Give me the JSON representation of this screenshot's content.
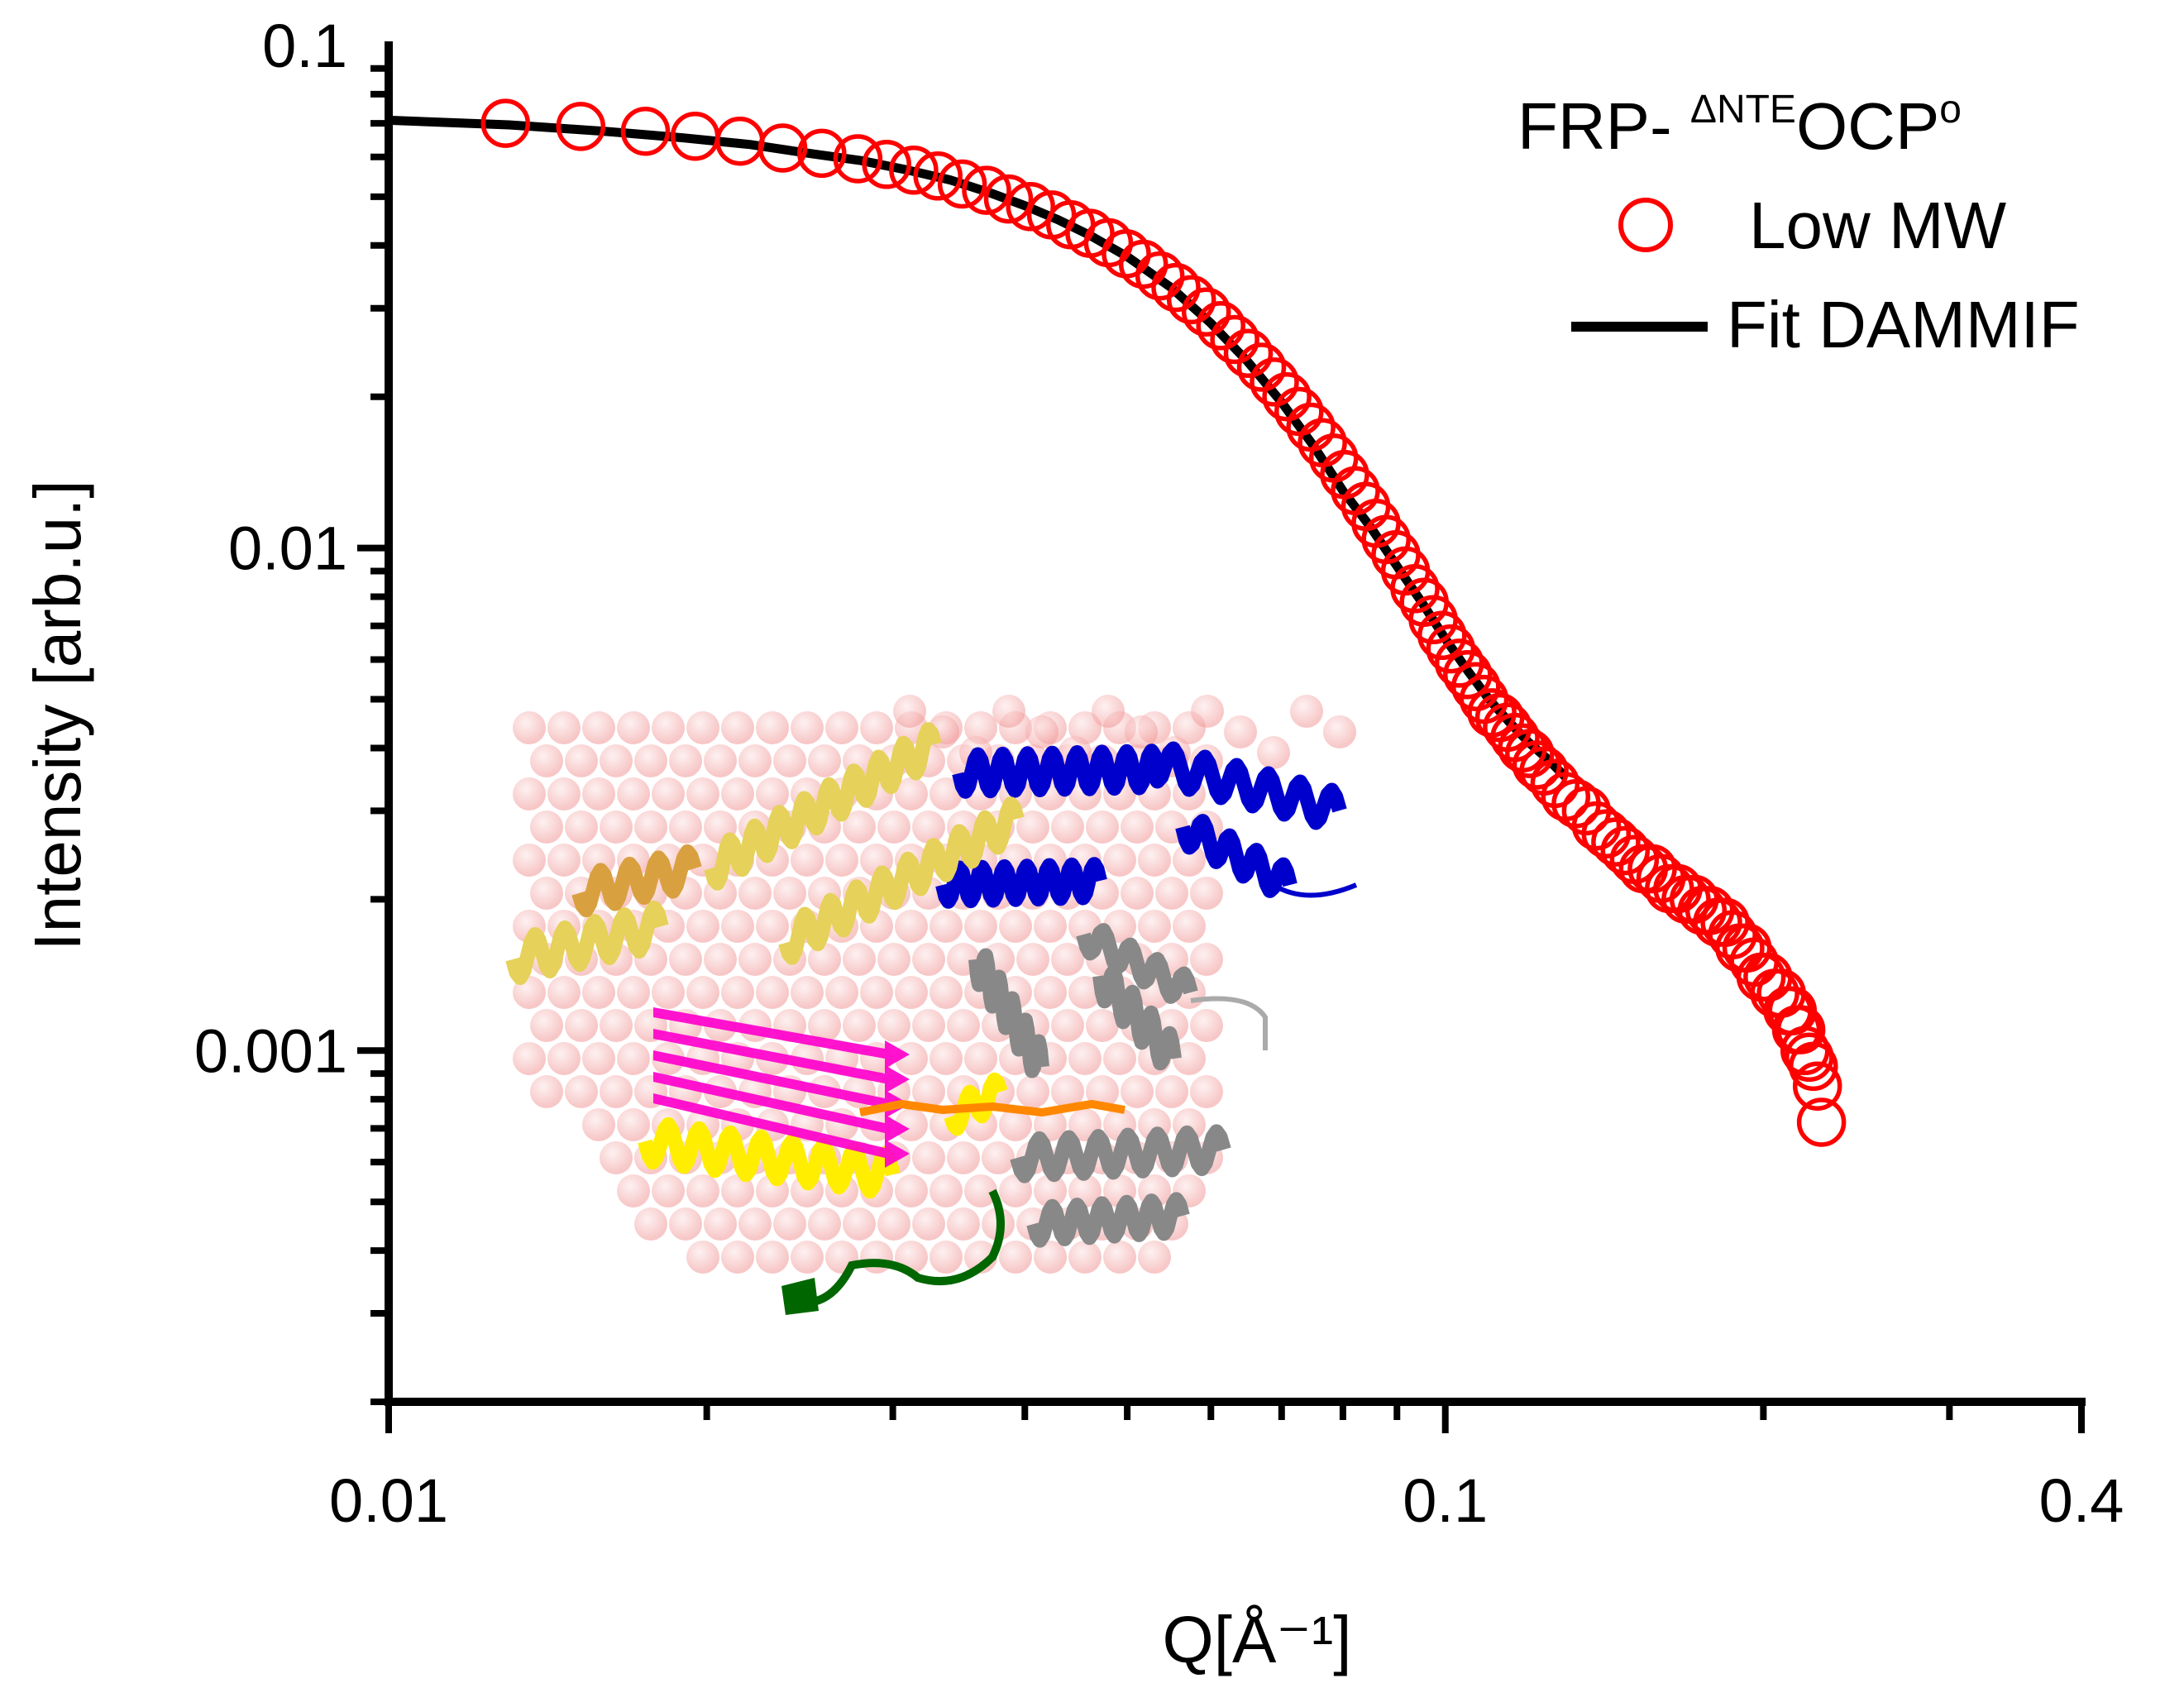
{
  "chart_data": {
    "type": "scatter",
    "xscale": "log",
    "yscale": "log",
    "xlim": [
      0.01,
      0.4
    ],
    "ylim": [
      0.0002,
      0.1
    ],
    "xlabel": "Q[Å⁻¹]",
    "ylabel": "Intensity [arb.u.]",
    "x_ticks": [
      {
        "value": 0.01,
        "label": "0.01"
      },
      {
        "value": 0.1,
        "label": "0.1"
      },
      {
        "value": 0.4,
        "label": "0.4"
      }
    ],
    "y_ticks": [
      {
        "value": 0.001,
        "label": "0.001"
      },
      {
        "value": 0.01,
        "label": "0.01"
      },
      {
        "value": 0.1,
        "label": "0.1"
      }
    ],
    "legend": {
      "title_main": "FRP- ",
      "title_sup": "ΔNTE",
      "title_mid": "OCP",
      "title_sup2": "o",
      "entries": [
        {
          "label": "Low MW",
          "marker": "open-circle",
          "color": "#ff0000"
        },
        {
          "label": "Fit DAMMIF",
          "marker": "line",
          "color": "#000000"
        }
      ],
      "position": "top-right"
    },
    "series": [
      {
        "name": "Low MW",
        "kind": "scatter",
        "color": "#ff0000",
        "x": [
          0.0129,
          0.0152,
          0.0175,
          0.0195,
          0.0215,
          0.0236,
          0.0257,
          0.0278,
          0.0296,
          0.0314,
          0.0331,
          0.0349,
          0.0368,
          0.0386,
          0.0405,
          0.0424,
          0.0442,
          0.0461,
          0.048,
          0.0499,
          0.0518,
          0.0537,
          0.0556,
          0.0575,
          0.0594,
          0.0613,
          0.0632,
          0.0651,
          0.067,
          0.0689,
          0.0708,
          0.0727,
          0.0746,
          0.0765,
          0.0784,
          0.0803,
          0.0822,
          0.0841,
          0.086,
          0.0879,
          0.0898,
          0.0917,
          0.0936,
          0.0955,
          0.0974,
          0.0993,
          0.1012,
          0.1031,
          0.105,
          0.1069,
          0.1088,
          0.1107,
          0.1126,
          0.1145,
          0.1164,
          0.1183,
          0.1202,
          0.1221,
          0.124,
          0.127,
          0.13,
          0.133,
          0.136,
          0.139,
          0.142,
          0.145,
          0.148,
          0.151,
          0.154,
          0.157,
          0.16,
          0.163,
          0.166,
          0.169,
          0.172,
          0.175,
          0.178,
          0.181,
          0.184,
          0.187,
          0.19,
          0.193,
          0.196,
          0.199,
          0.202,
          0.205,
          0.208,
          0.211,
          0.213,
          0.215,
          0.217,
          0.219,
          0.221,
          0.223,
          0.225,
          0.227
        ],
        "y": [
          0.07,
          0.069,
          0.0675,
          0.066,
          0.0645,
          0.0625,
          0.061,
          0.0595,
          0.058,
          0.0565,
          0.055,
          0.053,
          0.0515,
          0.0495,
          0.0478,
          0.046,
          0.044,
          0.0423,
          0.0405,
          0.0385,
          0.0367,
          0.0348,
          0.033,
          0.0312,
          0.0295,
          0.0277,
          0.026,
          0.0244,
          0.0229,
          0.0214,
          0.02,
          0.0187,
          0.0174,
          0.0162,
          0.0151,
          0.014,
          0.013,
          0.0121,
          0.0112,
          0.0104,
          0.0097,
          0.009,
          0.0083,
          0.0078,
          0.0072,
          0.0067,
          0.0063,
          0.0059,
          0.0056,
          0.0053,
          0.005,
          0.0047,
          0.0046,
          0.0044,
          0.0042,
          0.004,
          0.0039,
          0.0037,
          0.0036,
          0.0034,
          0.0032,
          0.0031,
          0.003,
          0.0028,
          0.0027,
          0.0026,
          0.0025,
          0.0024,
          0.0023,
          0.0023,
          0.0022,
          0.0021,
          0.0021,
          0.002,
          0.002,
          0.0019,
          0.0019,
          0.0018,
          0.0018,
          0.0017,
          0.0016,
          0.0016,
          0.0015,
          0.0014,
          0.0014,
          0.0013,
          0.0013,
          0.0012,
          0.0012,
          0.0011,
          0.0011,
          0.001,
          0.00097,
          0.00093,
          0.00085,
          0.00072
        ]
      },
      {
        "name": "Fit DAMMIF",
        "kind": "line",
        "color": "#000000",
        "x": [
          0.01,
          0.013,
          0.016,
          0.019,
          0.022,
          0.025,
          0.028,
          0.031,
          0.034,
          0.037,
          0.04,
          0.043,
          0.046,
          0.05,
          0.055,
          0.06,
          0.065,
          0.07,
          0.075,
          0.08,
          0.085,
          0.09,
          0.095,
          0.1,
          0.105,
          0.11,
          0.115,
          0.12,
          0.125,
          0.13
        ],
        "y": [
          0.071,
          0.0695,
          0.0675,
          0.0655,
          0.0635,
          0.061,
          0.059,
          0.0565,
          0.054,
          0.051,
          0.048,
          0.045,
          0.042,
          0.038,
          0.033,
          0.028,
          0.0235,
          0.0195,
          0.016,
          0.013,
          0.011,
          0.0092,
          0.0078,
          0.0066,
          0.0057,
          0.005,
          0.0045,
          0.0041,
          0.0038,
          0.0035
        ]
      }
    ],
    "inset": {
      "kind": "molecular-structure-image",
      "colors": [
        "#f0a0a0",
        "#0000cc",
        "#e6d15a",
        "#ff00cc",
        "#ffee00",
        "#888888",
        "#006600",
        "#ff8800"
      ]
    }
  }
}
